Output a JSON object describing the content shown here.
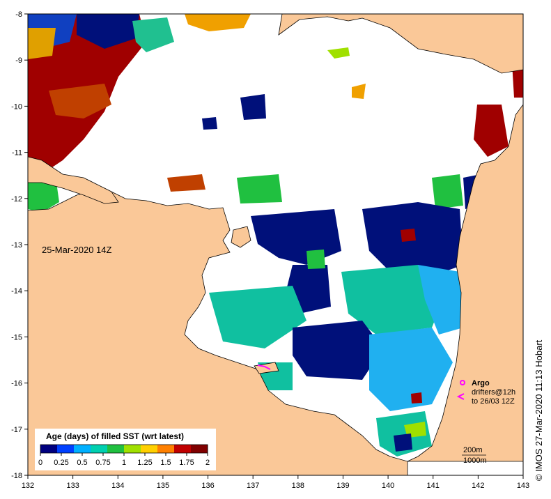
{
  "map": {
    "date_label": "25-Mar-2020 14Z",
    "credit": "© IMOS 27-Mar-2020 11:13 Hobart",
    "lon_ticks": [
      "132",
      "133",
      "134",
      "135",
      "136",
      "137",
      "138",
      "139",
      "140",
      "141",
      "142",
      "143"
    ],
    "lat_ticks": [
      "-8",
      "-9",
      "-10",
      "-11",
      "-12",
      "-13",
      "-14",
      "-15",
      "-16",
      "-17",
      "-18"
    ],
    "legend": {
      "argo": "Argo",
      "drifters_line1": "drifters@12h",
      "drifters_line2": "to 26/03 12Z",
      "argo_symbol_color": "#ff00ff",
      "drifter_symbol_color": "#ff00ff"
    },
    "contours": {
      "c200": "200m",
      "c1000": "1000m"
    },
    "colorbar": {
      "title": "Age (days) of filled SST (wrt latest)",
      "tick_labels": [
        "0",
        "0.25",
        "0.5",
        "0.75",
        "1",
        "1.25",
        "1.5",
        "1.75",
        "2"
      ],
      "colors": [
        "#00007f",
        "#0040ff",
        "#00b0ff",
        "#00d0b0",
        "#20c040",
        "#a0e000",
        "#ffd000",
        "#ff8000",
        "#c00000",
        "#800000"
      ]
    },
    "colors": {
      "land": "#fac898",
      "no_data": "#ffffff",
      "navy": "#00107a",
      "teal": "#10c0a0",
      "cyan": "#20b0f0",
      "green": "#20c040",
      "darkred": "#a00000",
      "orange": "#f0a000"
    }
  }
}
